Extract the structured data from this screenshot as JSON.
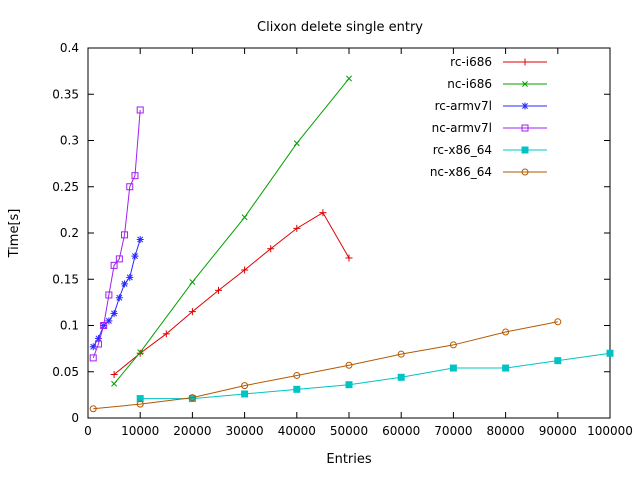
{
  "chart_data": {
    "type": "line",
    "title": "Clixon delete single entry",
    "xlabel": "Entries",
    "ylabel": "Time[s]",
    "xlim": [
      0,
      100000
    ],
    "ylim": [
      0,
      0.4
    ],
    "grid": false,
    "legend_position": "top-right-inside",
    "xticks": {
      "values": [
        0,
        10000,
        20000,
        30000,
        40000,
        50000,
        60000,
        70000,
        80000,
        90000,
        100000
      ],
      "labels": [
        "0",
        "10000",
        "20000",
        "30000",
        "40000",
        "50000",
        "60000",
        "70000",
        "80000",
        "90000",
        "100000"
      ]
    },
    "yticks": {
      "values": [
        0,
        0.05,
        0.1,
        0.15,
        0.2,
        0.25,
        0.3,
        0.35,
        0.4
      ],
      "labels": [
        "0",
        "0.05",
        "0.1",
        "0.15",
        "0.2",
        "0.25",
        "0.3",
        "0.35",
        "0.4"
      ]
    },
    "series": [
      {
        "name": "rc-i686",
        "color": "#e00000",
        "marker": "plus",
        "x": [
          5000,
          10000,
          15000,
          20000,
          25000,
          30000,
          35000,
          40000,
          45000,
          50000
        ],
        "y": [
          0.047,
          0.07,
          0.091,
          0.115,
          0.138,
          0.16,
          0.183,
          0.205,
          0.222,
          0.173
        ]
      },
      {
        "name": "nc-i686",
        "color": "#00a000",
        "marker": "cross",
        "x": [
          5000,
          10000,
          20000,
          30000,
          40000,
          50000
        ],
        "y": [
          0.037,
          0.071,
          0.147,
          0.217,
          0.297,
          0.367
        ]
      },
      {
        "name": "rc-armv7l",
        "color": "#2828ff",
        "marker": "asterisk",
        "x": [
          1000,
          2000,
          3000,
          4000,
          5000,
          6000,
          7000,
          8000,
          9000,
          10000
        ],
        "y": [
          0.077,
          0.086,
          0.1,
          0.105,
          0.113,
          0.13,
          0.145,
          0.152,
          0.175,
          0.193
        ]
      },
      {
        "name": "nc-armv7l",
        "color": "#a020f0",
        "marker": "square-open",
        "x": [
          1000,
          2000,
          3000,
          4000,
          5000,
          6000,
          7000,
          8000,
          9000,
          10000
        ],
        "y": [
          0.065,
          0.08,
          0.1,
          0.133,
          0.165,
          0.172,
          0.198,
          0.25,
          0.262,
          0.333
        ]
      },
      {
        "name": "rc-x86_64",
        "color": "#00c4c4",
        "marker": "square-filled",
        "x": [
          10000,
          20000,
          30000,
          40000,
          50000,
          60000,
          70000,
          80000,
          90000,
          100000
        ],
        "y": [
          0.021,
          0.021,
          0.026,
          0.031,
          0.036,
          0.044,
          0.054,
          0.054,
          0.062,
          0.07
        ]
      },
      {
        "name": "nc-x86_64",
        "color": "#b35900",
        "marker": "circle-open",
        "x": [
          1000,
          10000,
          20000,
          30000,
          40000,
          50000,
          60000,
          70000,
          80000,
          90000
        ],
        "y": [
          0.01,
          0.015,
          0.022,
          0.035,
          0.046,
          0.057,
          0.069,
          0.079,
          0.093,
          0.104
        ]
      }
    ]
  }
}
